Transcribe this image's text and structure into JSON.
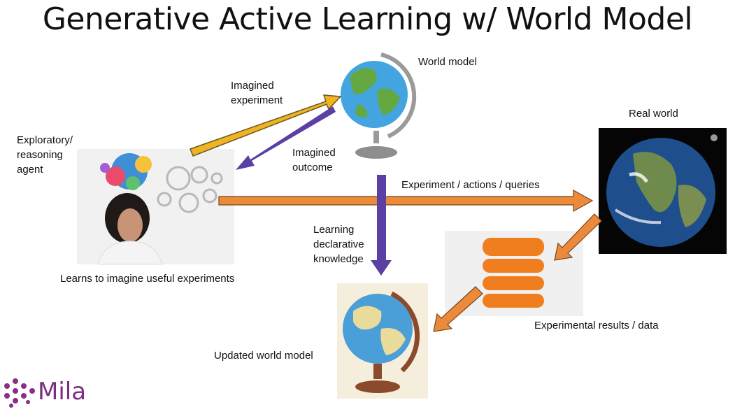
{
  "title": "Generative Active Learning w/ World Model",
  "labels": {
    "world_model": "World model",
    "imagined_experiment_1": "Imagined",
    "imagined_experiment_2": "experiment",
    "imagined_outcome_1": "Imagined",
    "imagined_outcome_2": "outcome",
    "agent_1": "Exploratory/",
    "agent_2": "reasoning",
    "agent_3": "agent",
    "real_world": "Real world",
    "experiment_actions": "Experiment / actions / queries",
    "learning_1": "Learning",
    "learning_2": "declarative",
    "learning_3": "knowledge",
    "learns_to_imagine": "Learns to imagine useful experiments",
    "results": "Experimental results / data",
    "updated_world_model": "Updated world model"
  },
  "logo": {
    "text": "Mila"
  },
  "colors": {
    "yellow_arrow": "#f0b323",
    "purple_arrow": "#5b3fa5",
    "orange_arrow": "#ec8a3c",
    "database": "#f07e1e",
    "logo": "#7b2e82"
  },
  "icons": {
    "world_model": "globe-icon",
    "real_world": "earth-icon",
    "results": "database-icon",
    "agent": "thinking-person-icon",
    "updated_world_model": "globe-icon"
  }
}
